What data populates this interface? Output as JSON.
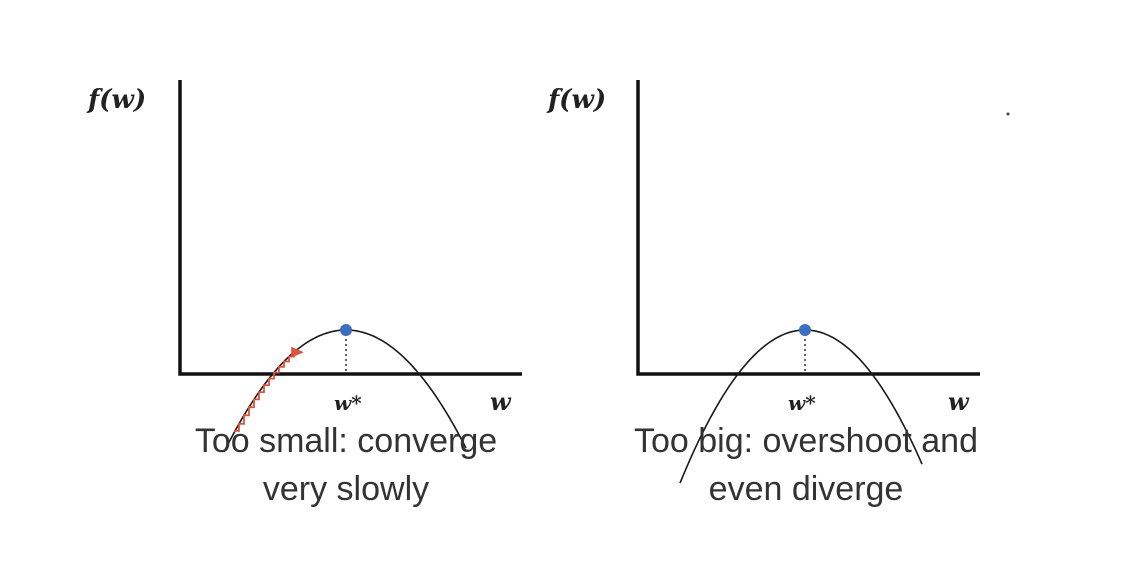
{
  "panels": [
    {
      "id": "left",
      "y_axis_label": "f(w)",
      "x_axis_label": "w",
      "minimum_label": "w*",
      "caption_lines": [
        "Too small: converge",
        "very slowly"
      ],
      "path_style": "many-small-steps"
    },
    {
      "id": "right",
      "y_axis_label": "f(w)",
      "x_axis_label": "w",
      "minimum_label": "w*",
      "caption_lines": [
        "Too big: overshoot and",
        "even diverge"
      ],
      "path_style": "large-zigzag-overshoot"
    }
  ],
  "colors": {
    "curve": "#1a1a1a",
    "axes": "#111111",
    "descent_path": "#e0533a",
    "minimum_point": "#3a6fc4"
  }
}
